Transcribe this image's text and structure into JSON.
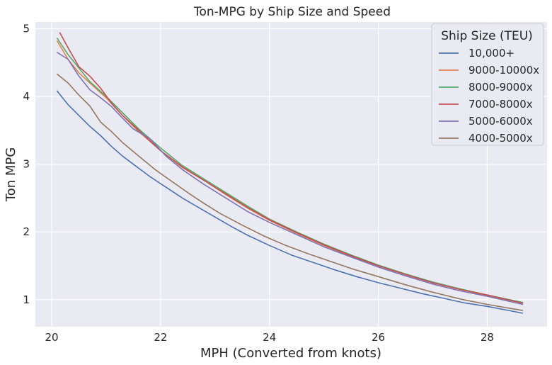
{
  "chart_data": {
    "type": "line",
    "title": "Ton-MPG by Ship Size and Speed",
    "xlabel": "MPH (Converted from knots)",
    "ylabel": "Ton MPG",
    "xlim": [
      19.7,
      29.1
    ],
    "ylim": [
      0.6,
      5.1
    ],
    "xticks": [
      20,
      22,
      24,
      26,
      28
    ],
    "yticks": [
      1,
      2,
      3,
      4,
      5
    ],
    "grid": true,
    "legend": {
      "title": "Ship Size (TEU)",
      "placement": "top-right"
    },
    "series": [
      {
        "name": "10,000+",
        "color": "#4c72b0",
        "x": [
          20.1,
          20.3,
          20.5,
          20.7,
          20.9,
          21.1,
          21.3,
          21.5,
          21.8,
          22.1,
          22.4,
          22.7,
          23.0,
          23.3,
          23.6,
          24.0,
          24.4,
          24.8,
          25.2,
          25.6,
          26.0,
          26.4,
          26.8,
          27.2,
          27.6,
          28.0,
          28.4,
          28.65
        ],
        "y": [
          4.08,
          3.88,
          3.72,
          3.56,
          3.42,
          3.26,
          3.12,
          3.0,
          2.82,
          2.66,
          2.5,
          2.36,
          2.22,
          2.08,
          1.95,
          1.8,
          1.66,
          1.55,
          1.44,
          1.34,
          1.25,
          1.17,
          1.09,
          1.02,
          0.95,
          0.9,
          0.84,
          0.8
        ]
      },
      {
        "name": "9000-10000x",
        "color": "#dd8452",
        "x": [
          20.1,
          20.3,
          20.5,
          20.7,
          21.0,
          21.3,
          21.6,
          22.0,
          22.4,
          22.8,
          23.2,
          23.6,
          24.0,
          24.5,
          25.0,
          25.5,
          26.0,
          26.5,
          27.0,
          27.5,
          28.0,
          28.65
        ],
        "y": [
          4.82,
          4.55,
          4.35,
          4.2,
          3.98,
          3.72,
          3.48,
          3.2,
          2.95,
          2.76,
          2.55,
          2.35,
          2.17,
          1.98,
          1.8,
          1.64,
          1.5,
          1.37,
          1.25,
          1.15,
          1.06,
          0.95
        ]
      },
      {
        "name": "8000-9000x",
        "color": "#55a868",
        "x": [
          20.1,
          20.3,
          20.5,
          20.7,
          21.0,
          21.3,
          21.6,
          22.0,
          22.4,
          22.8,
          23.2,
          23.6,
          24.0,
          24.5,
          25.0,
          25.5,
          26.0,
          26.5,
          27.0,
          27.5,
          28.0,
          28.65
        ],
        "y": [
          4.86,
          4.62,
          4.42,
          4.22,
          4.0,
          3.76,
          3.52,
          3.24,
          2.98,
          2.78,
          2.58,
          2.38,
          2.19,
          2.0,
          1.82,
          1.66,
          1.51,
          1.38,
          1.26,
          1.16,
          1.07,
          0.96
        ]
      },
      {
        "name": "7000-8000x",
        "color": "#c44e52",
        "x": [
          20.15,
          20.3,
          20.5,
          20.7,
          20.9,
          21.1,
          21.3,
          21.6,
          22.0,
          22.4,
          22.8,
          23.2,
          23.6,
          24.0,
          24.5,
          25.0,
          25.5,
          26.0,
          26.5,
          27.0,
          27.5,
          28.0,
          28.65
        ],
        "y": [
          4.94,
          4.72,
          4.44,
          4.3,
          4.12,
          3.9,
          3.72,
          3.5,
          3.2,
          2.96,
          2.76,
          2.56,
          2.36,
          2.18,
          1.99,
          1.81,
          1.65,
          1.5,
          1.37,
          1.25,
          1.15,
          1.07,
          0.95
        ]
      },
      {
        "name": "5000-6000x",
        "color": "#8172b3",
        "x": [
          20.1,
          20.3,
          20.5,
          20.7,
          20.9,
          21.1,
          21.3,
          21.5,
          21.8,
          22.1,
          22.4,
          22.8,
          23.2,
          23.6,
          24.0,
          24.5,
          25.0,
          25.5,
          26.0,
          26.5,
          27.0,
          27.5,
          28.0,
          28.65
        ],
        "y": [
          4.65,
          4.55,
          4.3,
          4.1,
          3.98,
          3.85,
          3.68,
          3.52,
          3.38,
          3.12,
          2.92,
          2.7,
          2.5,
          2.3,
          2.14,
          1.96,
          1.78,
          1.63,
          1.48,
          1.35,
          1.23,
          1.13,
          1.05,
          0.93
        ]
      },
      {
        "name": "4000-5000x",
        "color": "#937860",
        "x": [
          20.1,
          20.3,
          20.5,
          20.7,
          20.9,
          21.1,
          21.3,
          21.6,
          21.9,
          22.2,
          22.5,
          22.8,
          23.1,
          23.5,
          23.9,
          24.3,
          24.7,
          25.1,
          25.5,
          26.0,
          26.5,
          27.0,
          27.5,
          28.0,
          28.65
        ],
        "y": [
          4.33,
          4.2,
          4.02,
          3.86,
          3.62,
          3.48,
          3.32,
          3.12,
          2.92,
          2.75,
          2.58,
          2.42,
          2.27,
          2.1,
          1.94,
          1.8,
          1.68,
          1.57,
          1.46,
          1.34,
          1.22,
          1.11,
          1.01,
          0.93,
          0.84
        ]
      }
    ]
  }
}
